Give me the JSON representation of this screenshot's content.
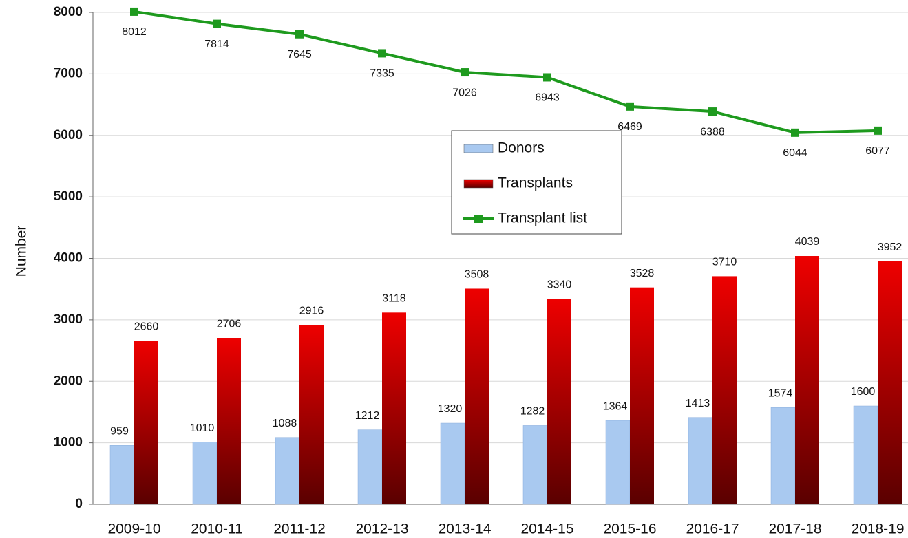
{
  "chart_data": {
    "type": "bar",
    "ylabel": "Number",
    "categories": [
      "2009-10",
      "2010-11",
      "2011-12",
      "2012-13",
      "2013-14",
      "2014-15",
      "2015-16",
      "2016-17",
      "2017-18",
      "2018-19"
    ],
    "series": [
      {
        "name": "Donors",
        "color": "#a9c9f0",
        "values": [
          959,
          1010,
          1088,
          1212,
          1320,
          1282,
          1364,
          1413,
          1574,
          1600
        ]
      },
      {
        "name": "Transplants",
        "color": "#ee0000",
        "values": [
          2660,
          2706,
          2916,
          3118,
          3508,
          3340,
          3528,
          3710,
          4039,
          3952
        ]
      },
      {
        "name": "Transplant list",
        "type": "line",
        "color": "#1e9a1e",
        "values": [
          8012,
          7814,
          7645,
          7335,
          7026,
          6943,
          6469,
          6388,
          6044,
          6077
        ]
      }
    ],
    "ylim": [
      0,
      8000
    ],
    "yticks": [
      0,
      1000,
      2000,
      3000,
      4000,
      5000,
      6000,
      7000,
      8000
    ],
    "grid": true
  }
}
